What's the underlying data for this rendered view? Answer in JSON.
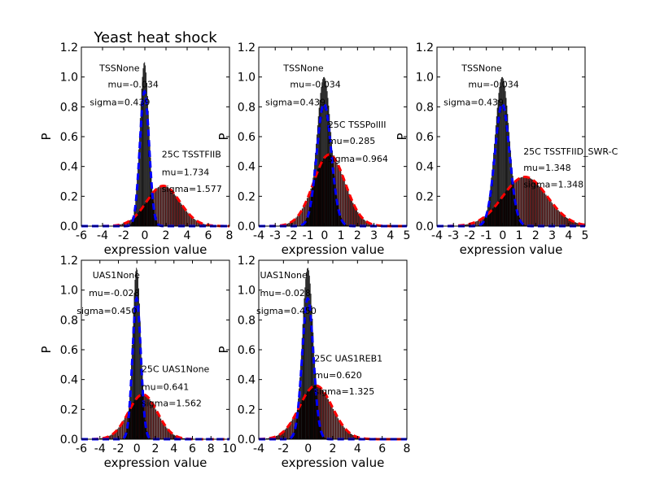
{
  "chart_data": [
    {
      "type": "histogram",
      "title": "Yeast heat shock",
      "xlabel": "expression value",
      "ylabel": "P",
      "xlim": [
        -6,
        8
      ],
      "ylim": [
        0,
        1.2
      ],
      "xticks": [
        "-6",
        "-4",
        "-2",
        "0",
        "2",
        "4",
        "6",
        "8"
      ],
      "yticks": [
        "0.0",
        "0.2",
        "0.4",
        "0.6",
        "0.8",
        "1.0",
        "1.2"
      ],
      "annotations": [
        {
          "text": "TSSNone",
          "x": -4.3,
          "y": 1.04
        },
        {
          "text": "mu=-0.034",
          "x": -3.5,
          "y": 0.93
        },
        {
          "text": "sigma=0.439",
          "x": -5.2,
          "y": 0.81
        },
        {
          "text": "25C TSSTFIIB",
          "x": 1.6,
          "y": 0.46
        },
        {
          "text": "mu=1.734",
          "x": 1.6,
          "y": 0.34
        },
        {
          "text": "sigma=1.577",
          "x": 1.6,
          "y": 0.23
        }
      ],
      "series": [
        {
          "name": "TSSNone",
          "mu": -0.034,
          "sigma": 0.439,
          "color": "#000000",
          "peak": 1.1
        },
        {
          "name": "25C TSSTFIIB",
          "mu": 1.734,
          "sigma": 1.577,
          "color": "#8b1a1a",
          "peak": 0.27
        }
      ]
    },
    {
      "type": "histogram",
      "title": "",
      "xlabel": "expression value",
      "ylabel": "P",
      "xlim": [
        -4,
        5
      ],
      "ylim": [
        0,
        1.2
      ],
      "xticks": [
        "-4",
        "-3",
        "-2",
        "-1",
        "0",
        "1",
        "2",
        "3",
        "4",
        "5"
      ],
      "yticks": [
        "0.0",
        "0.2",
        "0.4",
        "0.6",
        "0.8",
        "1.0",
        "1.2"
      ],
      "annotations": [
        {
          "text": "TSSNone",
          "x": -2.5,
          "y": 1.04
        },
        {
          "text": "mu=-0.034",
          "x": -2.1,
          "y": 0.93
        },
        {
          "text": "sigma=0.439",
          "x": -3.6,
          "y": 0.81
        },
        {
          "text": "25C TSSPolIII",
          "x": 0.2,
          "y": 0.66
        },
        {
          "text": "mu=0.285",
          "x": 0.2,
          "y": 0.55
        },
        {
          "text": "sigma=0.964",
          "x": 0.2,
          "y": 0.43
        }
      ],
      "series": [
        {
          "name": "TSSNone",
          "mu": -0.034,
          "sigma": 0.439,
          "color": "#000000",
          "peak": 1.0
        },
        {
          "name": "25C TSSPolIII",
          "mu": 0.285,
          "sigma": 0.964,
          "color": "#8b1a1a",
          "peak": 0.48
        }
      ]
    },
    {
      "type": "histogram",
      "title": "",
      "xlabel": "expression value",
      "ylabel": "P",
      "xlim": [
        -4,
        5
      ],
      "ylim": [
        0,
        1.2
      ],
      "xticks": [
        "-4",
        "-3",
        "-2",
        "-1",
        "0",
        "1",
        "2",
        "3",
        "4",
        "5"
      ],
      "yticks": [
        "0.0",
        "0.2",
        "0.4",
        "0.6",
        "0.8",
        "1.0",
        "1.2"
      ],
      "annotations": [
        {
          "text": "TSSNone",
          "x": -2.5,
          "y": 1.04
        },
        {
          "text": "mu=-0.034",
          "x": -2.1,
          "y": 0.93
        },
        {
          "text": "sigma=0.439",
          "x": -3.6,
          "y": 0.81
        },
        {
          "text": "25C TSSTFIID_SWR-C",
          "x": 1.25,
          "y": 0.48
        },
        {
          "text": "mu=1.348",
          "x": 1.25,
          "y": 0.37
        },
        {
          "text": "sigma=1.348",
          "x": 1.25,
          "y": 0.26
        }
      ],
      "series": [
        {
          "name": "TSSNone",
          "mu": -0.034,
          "sigma": 0.439,
          "color": "#000000",
          "peak": 1.0
        },
        {
          "name": "25C TSSTFIID_SWR-C",
          "mu": 1.348,
          "sigma": 1.348,
          "color": "#8b1a1a",
          "peak": 0.33
        }
      ]
    },
    {
      "type": "histogram",
      "title": "",
      "xlabel": "expression value",
      "ylabel": "P",
      "xlim": [
        -6,
        10
      ],
      "ylim": [
        0,
        1.2
      ],
      "xticks": [
        "-6",
        "-4",
        "-2",
        "0",
        "2",
        "4",
        "6",
        "8",
        "10"
      ],
      "yticks": [
        "0.0",
        "0.2",
        "0.4",
        "0.6",
        "0.8",
        "1.0",
        "1.2"
      ],
      "annotations": [
        {
          "text": "UAS1None",
          "x": -4.8,
          "y": 1.08
        },
        {
          "text": "mu=-0.028",
          "x": -5.2,
          "y": 0.96
        },
        {
          "text": "sigma=0.450",
          "x": -6.5,
          "y": 0.84
        },
        {
          "text": "25C UAS1None",
          "x": 0.5,
          "y": 0.45
        },
        {
          "text": "mu=0.641",
          "x": 0.5,
          "y": 0.33
        },
        {
          "text": "sigma=1.562",
          "x": 0.5,
          "y": 0.22
        }
      ],
      "series": [
        {
          "name": "UAS1None",
          "mu": -0.028,
          "sigma": 0.45,
          "color": "#000000",
          "peak": 1.15
        },
        {
          "name": "25C UAS1None",
          "mu": 0.641,
          "sigma": 1.562,
          "color": "#8b1a1a",
          "peak": 0.3
        }
      ]
    },
    {
      "type": "histogram",
      "title": "",
      "xlabel": "expression value",
      "ylabel": "P",
      "xlim": [
        -4,
        8
      ],
      "ylim": [
        0,
        1.2
      ],
      "xticks": [
        "-4",
        "-2",
        "0",
        "2",
        "4",
        "6",
        "8"
      ],
      "yticks": [
        "0.0",
        "0.2",
        "0.4",
        "0.6",
        "0.8",
        "1.0",
        "1.2"
      ],
      "annotations": [
        {
          "text": "UAS1None",
          "x": -3.9,
          "y": 1.08
        },
        {
          "text": "mu=-0.028",
          "x": -3.9,
          "y": 0.96
        },
        {
          "text": "sigma=0.450",
          "x": -4.2,
          "y": 0.84
        },
        {
          "text": "25C UAS1REB1",
          "x": 0.5,
          "y": 0.52
        },
        {
          "text": "mu=0.620",
          "x": 0.5,
          "y": 0.41
        },
        {
          "text": "sigma=1.325",
          "x": 0.5,
          "y": 0.3
        }
      ],
      "series": [
        {
          "name": "UAS1None",
          "mu": -0.028,
          "sigma": 0.45,
          "color": "#000000",
          "peak": 1.15
        },
        {
          "name": "25C UAS1REB1",
          "mu": 0.62,
          "sigma": 1.325,
          "color": "#8b1a1a",
          "peak": 0.36
        }
      ]
    }
  ]
}
